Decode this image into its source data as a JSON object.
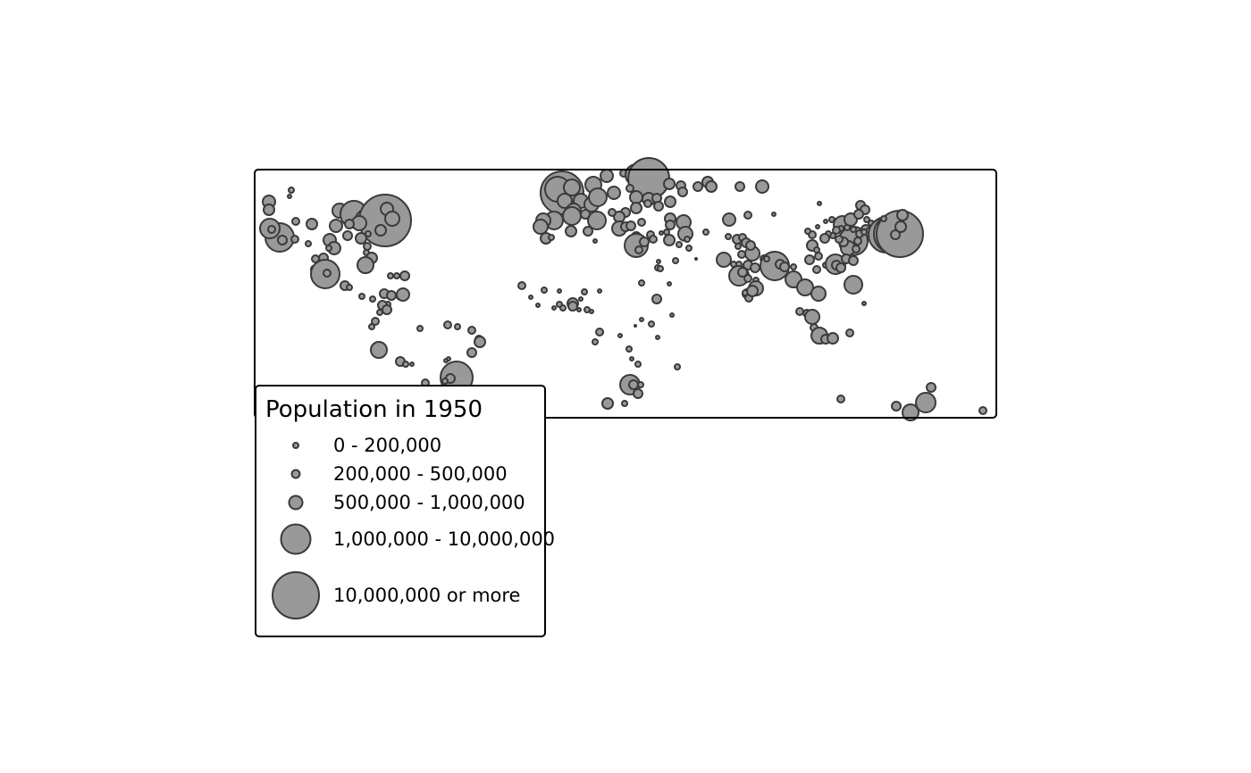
{
  "legend": {
    "title": "Population in 1950",
    "classes": [
      {
        "label": "0 - 200,000"
      },
      {
        "label": "200,000 - 500,000"
      },
      {
        "label": "500,000 - 1,000,000"
      },
      {
        "label": "1,000,000 - 10,000,000"
      },
      {
        "label": "10,000,000 or more"
      }
    ]
  },
  "symbol_style": {
    "fill": "#999999",
    "stroke": "#3a3a3a"
  }
}
